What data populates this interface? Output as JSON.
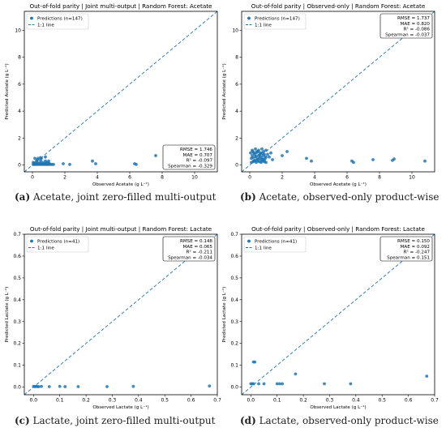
{
  "chart_data": [
    {
      "type": "scatter",
      "title": "Out-of-fold parity | Joint multi-output | Random Forest: Acetate",
      "xlabel": "Observed Acetate (g L⁻¹)",
      "ylabel": "Predicted Acetate (g L⁻¹)",
      "xlim": [
        -0.5,
        11.4
      ],
      "ylim": [
        -0.5,
        11.4
      ],
      "xticks": [
        0,
        2,
        4,
        6,
        8,
        10
      ],
      "yticks": [
        0,
        2,
        4,
        6,
        8,
        10
      ],
      "legend": [
        "Predictions (n=147)",
        "1:1 line"
      ],
      "legend_position": "top-left",
      "stats": [
        "RMSE = 1.746",
        "MAE = 0.707",
        "R² = -0.097",
        "Spearman = -0.329"
      ],
      "stats_position": "bottom-right",
      "color": "#1f77b4",
      "series": [
        {
          "x": [
            0.05,
            0.1,
            0.15,
            0.2,
            0.25,
            0.3,
            0.35,
            0.4,
            0.45,
            0.5,
            0.55,
            0.6,
            0.65,
            0.7,
            0.75,
            0.8,
            0.85,
            0.9,
            0.95,
            1.0,
            1.05,
            1.1,
            1.2,
            1.3,
            0.1,
            0.2,
            0.3,
            0.45,
            0.6,
            0.75,
            0.9,
            1.0,
            0.15,
            0.35,
            0.55,
            0.8,
            0.05,
            0.25,
            0.5,
            1.0,
            0.5,
            0.8,
            0.3,
            1.9,
            2.3,
            3.7,
            3.9,
            6.3,
            6.4,
            7.6
          ],
          "y": [
            0.05,
            0.05,
            0.08,
            0.05,
            0.1,
            0.05,
            0.08,
            0.05,
            0.1,
            0.05,
            0.08,
            0.05,
            0.1,
            0.05,
            0.08,
            0.05,
            0.1,
            0.05,
            0.08,
            0.05,
            0.1,
            0.05,
            0.05,
            0.05,
            0.15,
            0.15,
            0.2,
            0.15,
            0.2,
            0.15,
            0.2,
            0.15,
            0.5,
            0.5,
            0.5,
            0.3,
            0.2,
            0.3,
            0.35,
            0.3,
            0.55,
            0.6,
            0.4,
            0.1,
            0.05,
            0.3,
            0.1,
            0.1,
            0.05,
            0.7
          ]
        }
      ]
    },
    {
      "type": "scatter",
      "title": "Out-of-fold parity | Observed-only | Random Forest: Acetate",
      "xlabel": "Observed Acetate (g L⁻¹)",
      "ylabel": "Predicted Acetate (g L⁻¹)",
      "xlim": [
        -0.5,
        11.4
      ],
      "ylim": [
        -0.5,
        11.4
      ],
      "xticks": [
        0,
        2,
        4,
        6,
        8,
        10
      ],
      "yticks": [
        0,
        2,
        4,
        6,
        8,
        10
      ],
      "legend": [
        "Predictions (n=147)",
        "1:1 line"
      ],
      "legend_position": "top-left",
      "stats": [
        "RMSE = 1.737",
        "MAE = 0.820",
        "R² = -0.086",
        "Spearman = -0.037"
      ],
      "stats_position": "top-right",
      "color": "#1f77b4",
      "series": [
        {
          "x": [
            0.05,
            0.1,
            0.15,
            0.2,
            0.25,
            0.3,
            0.35,
            0.4,
            0.45,
            0.5,
            0.55,
            0.6,
            0.65,
            0.7,
            0.75,
            0.8,
            0.85,
            0.9,
            0.95,
            1.0,
            0.1,
            0.2,
            0.3,
            0.4,
            0.5,
            0.6,
            0.7,
            0.8,
            0.9,
            1.0,
            0.15,
            0.25,
            0.35,
            0.45,
            0.55,
            0.65,
            0.75,
            0.85,
            0.2,
            0.4,
            0.6,
            0.8,
            0.3,
            0.5,
            0.7,
            0.9,
            1.1,
            1.2,
            1.3,
            1.0,
            1.4,
            2.0,
            2.3,
            3.5,
            3.8,
            6.3,
            6.4,
            7.6,
            8.8,
            8.9,
            10.8
          ],
          "y": [
            0.9,
            0.5,
            0.7,
            1.0,
            0.3,
            0.8,
            0.6,
            0.9,
            0.4,
            1.0,
            0.7,
            0.5,
            0.8,
            0.6,
            0.9,
            0.4,
            0.7,
            0.8,
            0.5,
            0.6,
            0.2,
            0.25,
            0.3,
            0.2,
            0.3,
            0.25,
            0.2,
            0.3,
            0.25,
            0.2,
            1.1,
            0.9,
            1.2,
            1.0,
            1.1,
            0.9,
            1.2,
            1.0,
            0.55,
            0.65,
            0.75,
            0.45,
            0.35,
            0.45,
            0.4,
            0.35,
            0.8,
            0.6,
            0.9,
            1.1,
            0.4,
            0.7,
            1.0,
            0.5,
            0.3,
            0.3,
            0.2,
            0.4,
            0.35,
            0.45,
            0.3
          ]
        }
      ]
    },
    {
      "type": "scatter",
      "title": "Out-of-fold parity | Joint multi-output | Random Forest: Lactate",
      "xlabel": "Observed Lactate (g L⁻¹)",
      "ylabel": "Predicted Lactate (g L⁻¹)",
      "xlim": [
        -0.035,
        0.7
      ],
      "ylim": [
        -0.035,
        0.7
      ],
      "xticks": [
        0.0,
        0.1,
        0.2,
        0.3,
        0.4,
        0.5,
        0.6,
        0.7
      ],
      "yticks": [
        0.0,
        0.1,
        0.2,
        0.3,
        0.4,
        0.5,
        0.6,
        0.7
      ],
      "legend": [
        "Predictions (n=41)",
        "1:1 line"
      ],
      "legend_position": "top-left",
      "stats": [
        "RMSE = 0.148",
        "MAE = 0.065",
        "R² = -0.211",
        "Spearman = -0.034"
      ],
      "stats_position": "top-right",
      "color": "#1f77b4",
      "series": [
        {
          "x": [
            0.0,
            0.005,
            0.01,
            0.015,
            0.02,
            0.03,
            0.06,
            0.1,
            0.12,
            0.17,
            0.28,
            0.38,
            0.67
          ],
          "y": [
            0.003,
            0.002,
            0.003,
            0.002,
            0.002,
            0.003,
            0.002,
            0.003,
            0.002,
            0.002,
            0.002,
            0.003,
            0.005
          ]
        }
      ]
    },
    {
      "type": "scatter",
      "title": "Out-of-fold parity | Observed-only | Random Forest: Lactate",
      "xlabel": "Observed Lactate (g L⁻¹)",
      "ylabel": "Predicted Lactate (g L⁻¹)",
      "xlim": [
        -0.035,
        0.7
      ],
      "ylim": [
        -0.035,
        0.7
      ],
      "xticks": [
        0.0,
        0.1,
        0.2,
        0.3,
        0.4,
        0.5,
        0.6,
        0.7
      ],
      "yticks": [
        0.0,
        0.1,
        0.2,
        0.3,
        0.4,
        0.5,
        0.6,
        0.7
      ],
      "legend": [
        "Predictions (n=41)",
        "1:1 line"
      ],
      "legend_position": "top-left",
      "stats": [
        "RMSE = 0.150",
        "MAE = 0.092",
        "R² = -0.247",
        "Spearman = 0.151"
      ],
      "stats_position": "top-right",
      "color": "#1f77b4",
      "series": [
        {
          "x": [
            0.0,
            0.005,
            0.01,
            0.015,
            0.01,
            0.03,
            0.05,
            0.1,
            0.11,
            0.12,
            0.17,
            0.28,
            0.38,
            0.67
          ],
          "y": [
            0.015,
            0.015,
            0.115,
            0.115,
            0.015,
            0.015,
            0.015,
            0.015,
            0.015,
            0.015,
            0.06,
            0.015,
            0.015,
            0.05
          ]
        }
      ]
    }
  ],
  "captions": [
    {
      "tag": "(a)",
      "text": " Acetate, joint zero-filled multi-output"
    },
    {
      "tag": "(b)",
      "text": " Acetate, observed-only product-wise"
    },
    {
      "tag": "(c)",
      "text": " Lactate, joint zero-filled multi-output"
    },
    {
      "tag": "(d)",
      "text": " Lactate, observed-only product-wise"
    }
  ]
}
